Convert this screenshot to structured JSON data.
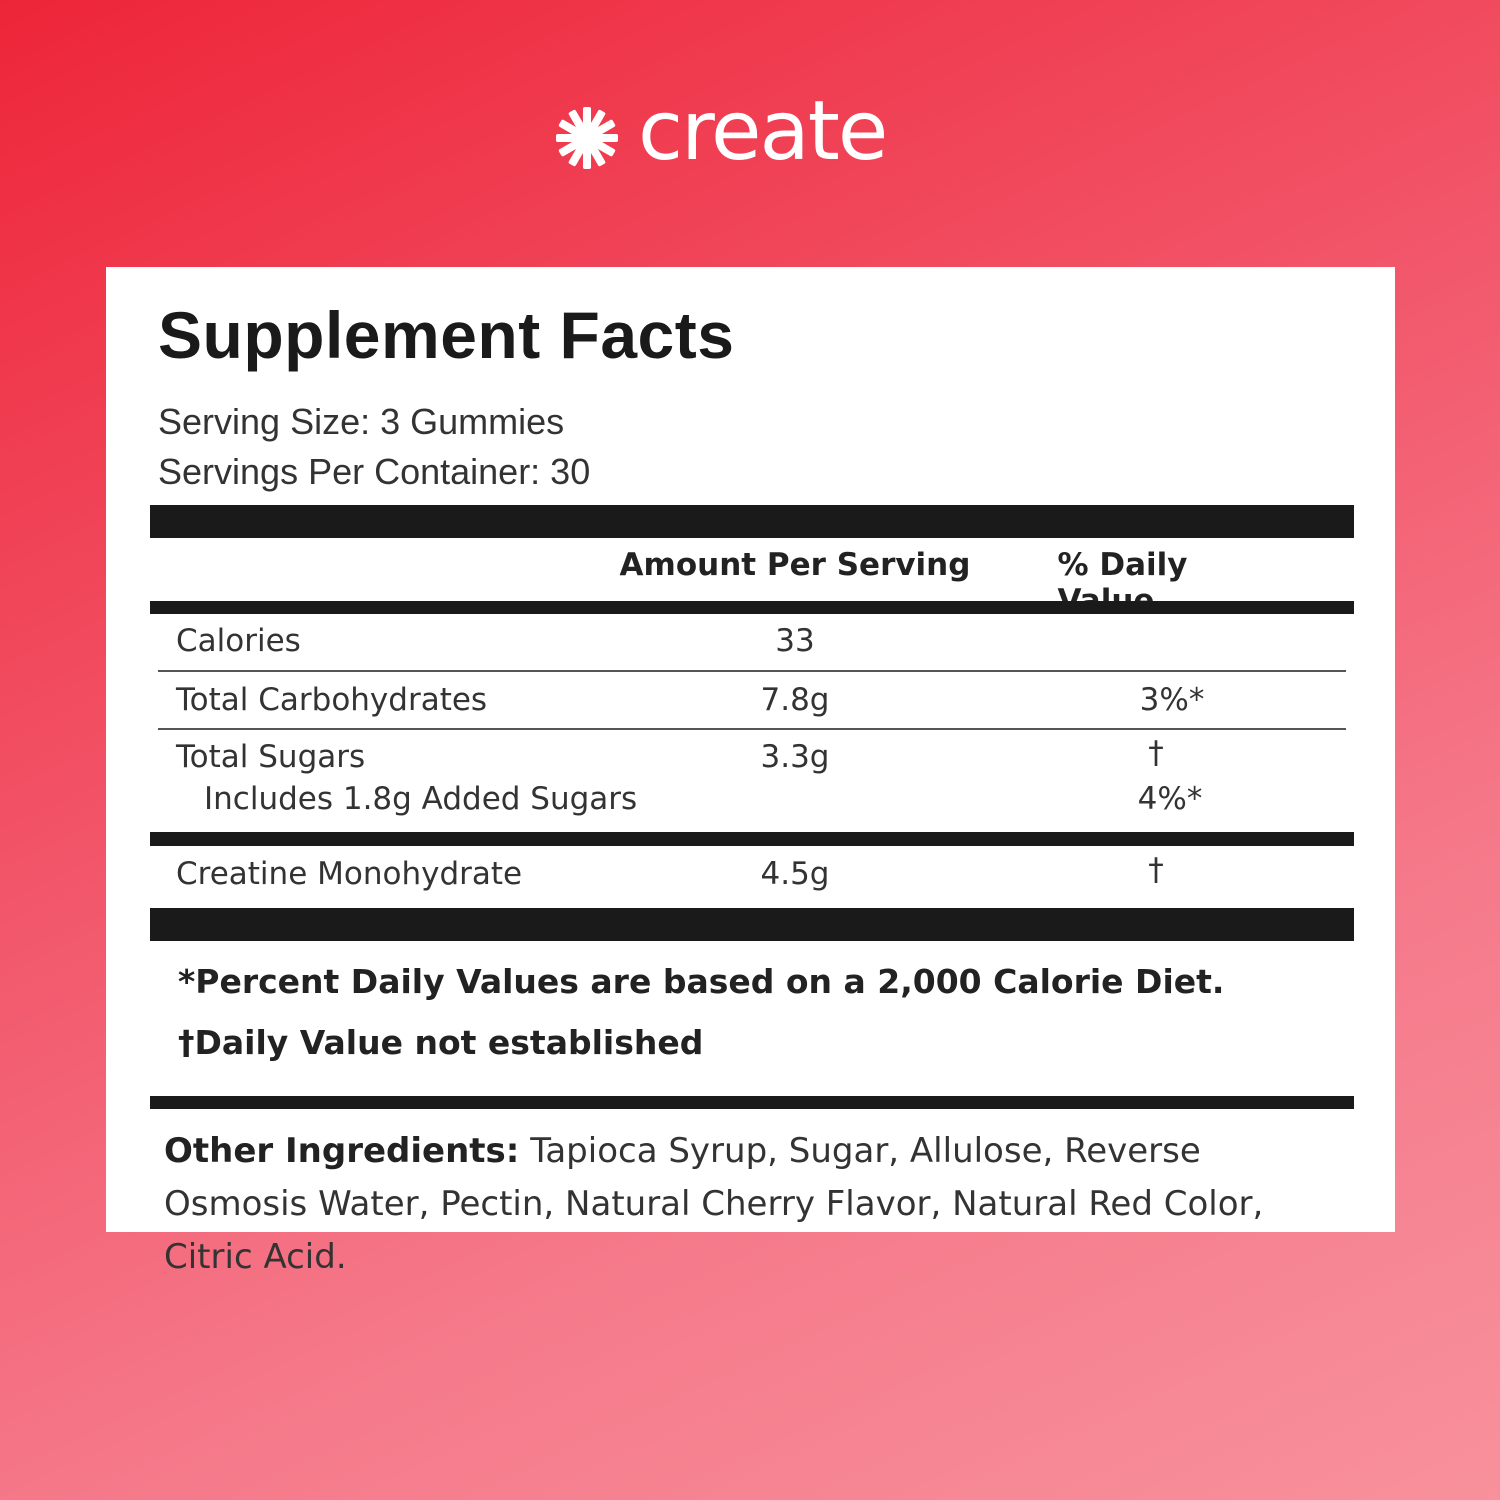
{
  "brand": {
    "name": "create",
    "colors": {
      "background_start": "#ee2539",
      "background_end": "#f8919c",
      "label_bg": "#ffffff",
      "rule": "#1a1a1a"
    }
  },
  "label": {
    "title": "Supplement Facts",
    "serving_size": "Serving Size: 3 Gummies",
    "servings_per_container": "Servings Per Container: 30",
    "columns": {
      "amount": "Amount Per Serving",
      "daily_value": "% Daily Value"
    },
    "rows": [
      {
        "name": "Calories",
        "amount": "33",
        "dv": ""
      },
      {
        "name": "Total Carbohydrates",
        "amount": "7.8g",
        "dv": "3%*"
      },
      {
        "name": "Total Sugars",
        "amount": "3.3g",
        "dv": "†"
      },
      {
        "name": "Includes 1.8g Added Sugars",
        "amount": "",
        "dv": "4%*"
      },
      {
        "name": "Creatine Monohydrate",
        "amount": "4.5g",
        "dv": "†"
      }
    ],
    "footnotes": [
      "*Percent Daily Values are based on a 2,000 Calorie Diet.",
      "†Daily Value not established"
    ],
    "other_ingredients_label": "Other Ingredients:",
    "other_ingredients": "Tapioca Syrup, Sugar, Allulose, Reverse Osmosis Water, Pectin, Natural Cherry Flavor, Natural Red Color, Citric Acid."
  }
}
